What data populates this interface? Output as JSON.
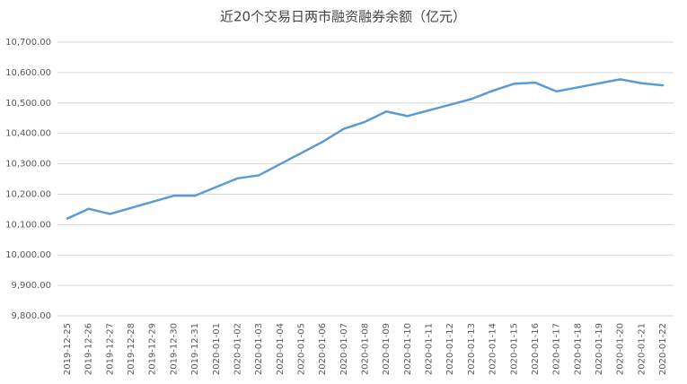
{
  "chart_data": {
    "type": "line",
    "title": "近20个交易日两市融资融券余额（亿元）",
    "x": [
      "2019-12-25",
      "2019-12-26",
      "2019-12-27",
      "2019-12-30",
      "2019-12-31",
      "2020-01-02",
      "2020-01-03",
      "2020-01-06",
      "2020-01-07",
      "2020-01-08",
      "2020-01-09",
      "2020-01-10",
      "2020-01-13",
      "2020-01-14",
      "2020-01-15",
      "2020-01-16",
      "2020-01-17",
      "2020-01-20",
      "2020-01-21",
      "2020-01-22"
    ],
    "values": [
      10120,
      10152,
      10135,
      10195,
      10195,
      10252,
      10262,
      10372,
      10415,
      10438,
      10472,
      10457,
      10513,
      10540,
      10563,
      10567,
      10538,
      10578,
      10565,
      10558
    ],
    "color": "#5b9bd5",
    "xticks": [
      "2019-12-25",
      "2019-12-26",
      "2019-12-27",
      "2019-12-28",
      "2019-12-29",
      "2019-12-30",
      "2019-12-31",
      "2020-01-01",
      "2020-01-02",
      "2020-01-03",
      "2020-01-04",
      "2020-01-05",
      "2020-01-06",
      "2020-01-07",
      "2020-01-08",
      "2020-01-09",
      "2020-01-10",
      "2020-01-11",
      "2020-01-12",
      "2020-01-13",
      "2020-01-14",
      "2020-01-15",
      "2020-01-16",
      "2020-01-17",
      "2020-01-18",
      "2020-01-19",
      "2020-01-20",
      "2020-01-21",
      "2020-01-22"
    ],
    "ylim": [
      9800,
      10700
    ],
    "yticks": [
      {
        "value": 9800,
        "label": "9,800.00"
      },
      {
        "value": 9900,
        "label": "9,900.00"
      },
      {
        "value": 10000,
        "label": "10,000.00"
      },
      {
        "value": 10100,
        "label": "10,100.00"
      },
      {
        "value": 10200,
        "label": "10,200.00"
      },
      {
        "value": 10300,
        "label": "10,300.00"
      },
      {
        "value": 10400,
        "label": "10,400.00"
      },
      {
        "value": 10500,
        "label": "10,500.00"
      },
      {
        "value": 10600,
        "label": "10,600.00"
      },
      {
        "value": 10700,
        "label": "10,700.00"
      }
    ],
    "grid": true
  }
}
